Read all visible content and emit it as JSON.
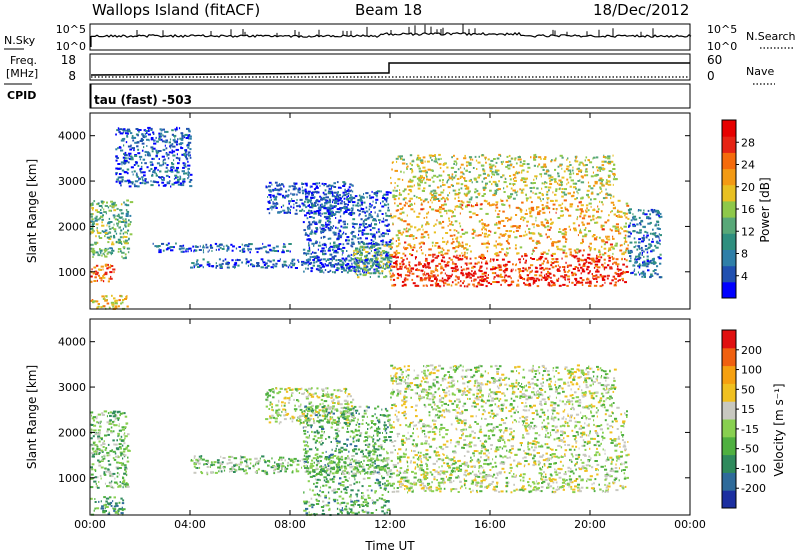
{
  "header": {
    "station": "Wallops Island (fitACF)",
    "beam": "Beam 18",
    "date": "18/Dec/2012"
  },
  "left_labels": {
    "nsky": "N.Sky",
    "freq_line1": "Freq.",
    "freq_line2": "[MHz]",
    "cpid": "CPID"
  },
  "right_labels": {
    "nsearch": "N.Search",
    "nave": "Nave"
  },
  "noise_panel": {
    "left_ticks": [
      "10^5",
      "10^0"
    ],
    "right_ticks": [
      "10^5",
      "10^0"
    ]
  },
  "freq_panel": {
    "left_ticks": [
      "18",
      "8"
    ],
    "right_ticks": [
      "60",
      "0"
    ]
  },
  "cpid_text": "tau (fast) -503",
  "chart_data": [
    {
      "type": "heatmap",
      "name": "power",
      "ylabel": "Slant Range [km]",
      "yticks": [
        "4000",
        "3000",
        "2000",
        "1000"
      ],
      "ylim": [
        180,
        4500
      ],
      "xlim": [
        0,
        24
      ],
      "colorbar": {
        "label": "Power [dB]",
        "ticks": [
          "28",
          "24",
          "20",
          "16",
          "12",
          "8",
          "4"
        ],
        "colors": [
          "#0000ff",
          "#2050b0",
          "#2f7fa8",
          "#2f8f7f",
          "#58a878",
          "#8ec84a",
          "#e8c022",
          "#f39a14",
          "#f56b0c",
          "#e62414",
          "#e60000"
        ]
      },
      "echo_regions": [
        {
          "x0": 0.0,
          "x1": 1.0,
          "y0": 800,
          "y1": 1200,
          "level": 0.78
        },
        {
          "x0": 0.0,
          "x1": 1.5,
          "y0": 200,
          "y1": 500,
          "level": 0.62
        },
        {
          "x0": 0.0,
          "x1": 1.6,
          "y0": 1300,
          "y1": 2600,
          "level": 0.42
        },
        {
          "x0": 1.0,
          "x1": 4.0,
          "y0": 2900,
          "y1": 4200,
          "level": 0.15
        },
        {
          "x0": 2.5,
          "x1": 8.0,
          "y0": 1450,
          "y1": 1650,
          "level": 0.18
        },
        {
          "x0": 7.0,
          "x1": 10.5,
          "y0": 2300,
          "y1": 3000,
          "level": 0.14
        },
        {
          "x0": 8.5,
          "x1": 12.0,
          "y0": 1000,
          "y1": 2800,
          "level": 0.17
        },
        {
          "x0": 4.0,
          "x1": 12.0,
          "y0": 1100,
          "y1": 1300,
          "level": 0.16
        },
        {
          "x0": 10.5,
          "x1": 12.0,
          "y0": 900,
          "y1": 1600,
          "level": 0.46
        },
        {
          "x0": 12.0,
          "x1": 21.5,
          "y0": 700,
          "y1": 1400,
          "level": 0.86
        },
        {
          "x0": 12.0,
          "x1": 21.5,
          "y0": 1400,
          "y1": 2600,
          "level": 0.66
        },
        {
          "x0": 12.0,
          "x1": 21.0,
          "y0": 2600,
          "y1": 3600,
          "level": 0.55
        },
        {
          "x0": 21.5,
          "x1": 22.8,
          "y0": 900,
          "y1": 2400,
          "level": 0.2
        }
      ]
    },
    {
      "type": "heatmap",
      "name": "velocity",
      "ylabel": "Slant Range [km]",
      "yticks": [
        "4000",
        "3000",
        "2000",
        "1000"
      ],
      "ylim": [
        180,
        4500
      ],
      "xlim": [
        0,
        24
      ],
      "xlabel": "Time UT",
      "xticks": [
        "00:00",
        "04:00",
        "08:00",
        "12:00",
        "16:00",
        "20:00",
        "00:00"
      ],
      "colorbar": {
        "label": "Velocity [m s⁻¹]",
        "ticks": [
          "200",
          "100",
          "50",
          "15",
          "-15",
          "-50",
          "-100",
          "-200"
        ],
        "colors": [
          "#1c2fa0",
          "#2f6b9a",
          "#2f8a5c",
          "#4fb040",
          "#88d050",
          "#c8c8c0",
          "#f0c020",
          "#f5a010",
          "#f06010",
          "#e01010"
        ]
      },
      "echo_regions": [
        {
          "x0": 0.0,
          "x1": 1.3,
          "y0": 200,
          "y1": 600,
          "level": 0.3
        },
        {
          "x0": 0.0,
          "x1": 1.5,
          "y0": 800,
          "y1": 2500,
          "level": 0.4
        },
        {
          "x0": 7.0,
          "x1": 10.5,
          "y0": 2200,
          "y1": 3000,
          "level": 0.5
        },
        {
          "x0": 8.5,
          "x1": 12.0,
          "y0": 200,
          "y1": 2600,
          "level": 0.35
        },
        {
          "x0": 4.0,
          "x1": 12.0,
          "y0": 1100,
          "y1": 1500,
          "level": 0.42
        },
        {
          "x0": 12.0,
          "x1": 21.5,
          "y0": 700,
          "y1": 1500,
          "level": 0.5
        },
        {
          "x0": 12.0,
          "x1": 21.5,
          "y0": 1500,
          "y1": 2600,
          "level": 0.5
        },
        {
          "x0": 12.0,
          "x1": 21.0,
          "y0": 2600,
          "y1": 3500,
          "level": 0.5
        }
      ]
    }
  ]
}
